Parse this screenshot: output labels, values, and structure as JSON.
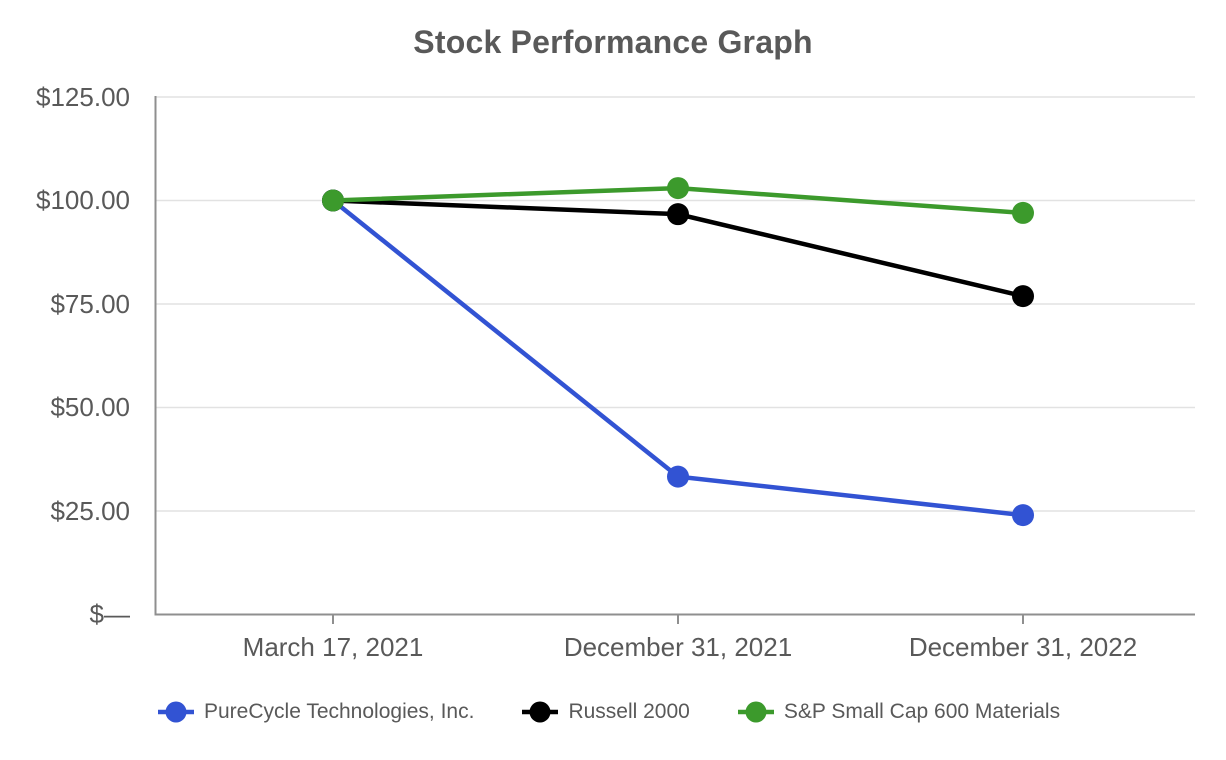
{
  "chart_data": {
    "type": "line",
    "title": "Stock Performance Graph",
    "categories": [
      "March 17, 2021",
      "December 31, 2021",
      "December 31, 2022"
    ],
    "series": [
      {
        "name": "PureCycle Technologies, Inc.",
        "color": "#3253D3",
        "values": [
          100.0,
          33.3,
          24.0
        ]
      },
      {
        "name": "Russell 2000",
        "color": "#000000",
        "values": [
          100.0,
          96.7,
          76.9
        ]
      },
      {
        "name": "S&P Small Cap 600 Materials",
        "color": "#3C9A2C",
        "values": [
          100.0,
          103.0,
          97.0
        ]
      }
    ],
    "y_ticks": [
      {
        "label": "$125.00",
        "value": 125
      },
      {
        "label": "$100.00",
        "value": 100
      },
      {
        "label": "$75.00",
        "value": 75
      },
      {
        "label": "$50.00",
        "value": 50
      },
      {
        "label": "$25.00",
        "value": 25
      },
      {
        "label": "$—",
        "value": 0
      }
    ],
    "ylim": [
      0,
      125
    ],
    "xlabel": "",
    "ylabel": "",
    "grid": true,
    "legend_position": "bottom",
    "marker": "circle"
  },
  "colors": {
    "text": "#595959",
    "axis": "#8F8F8F",
    "gridline": "#E2E2E2",
    "background": "#FFFFFF"
  }
}
